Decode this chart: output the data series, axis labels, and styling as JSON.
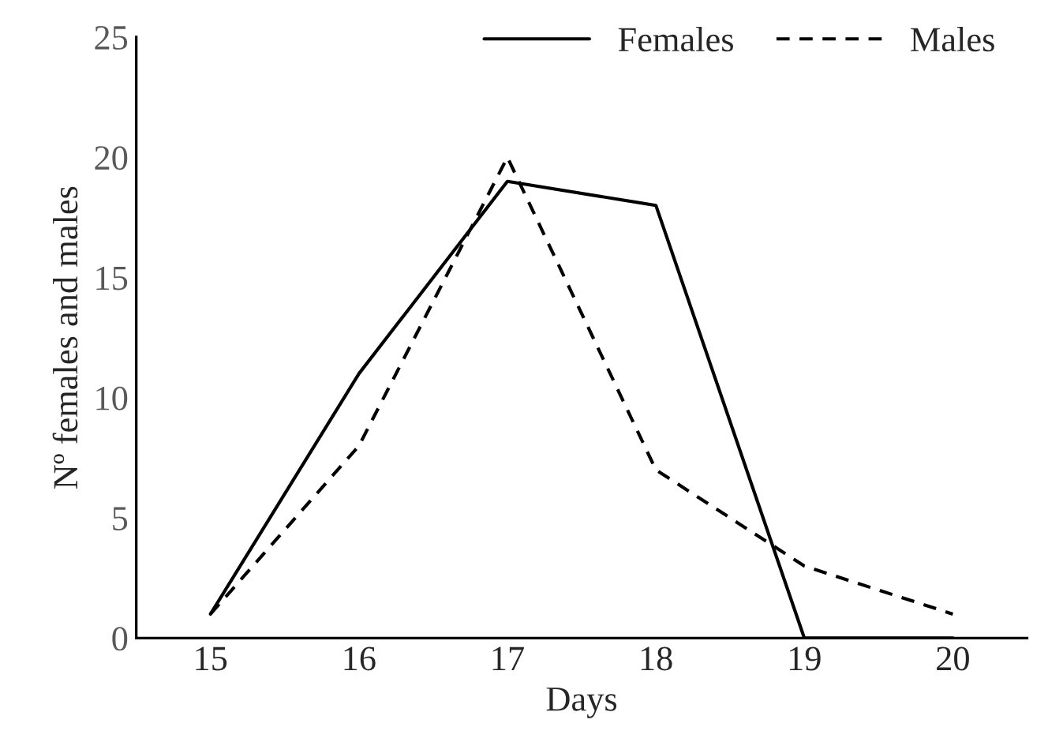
{
  "chart_data": {
    "type": "line",
    "xlabel": "Days",
    "ylabel": "Nº females and males",
    "categories": [
      "15",
      "16",
      "17",
      "18",
      "19",
      "20"
    ],
    "series": [
      {
        "name": "Females",
        "color": "#000000",
        "line_style": "solid",
        "values": [
          1,
          11,
          19,
          18,
          0,
          0
        ]
      },
      {
        "name": "Males",
        "color": "#000000",
        "line_style": "dashed",
        "values": [
          1,
          8,
          20,
          7,
          3,
          1
        ]
      }
    ],
    "ylim": [
      0,
      25
    ],
    "yticks": [
      0,
      5,
      10,
      15,
      20,
      25
    ],
    "grid": false,
    "legend": "top right",
    "marker": "none"
  }
}
